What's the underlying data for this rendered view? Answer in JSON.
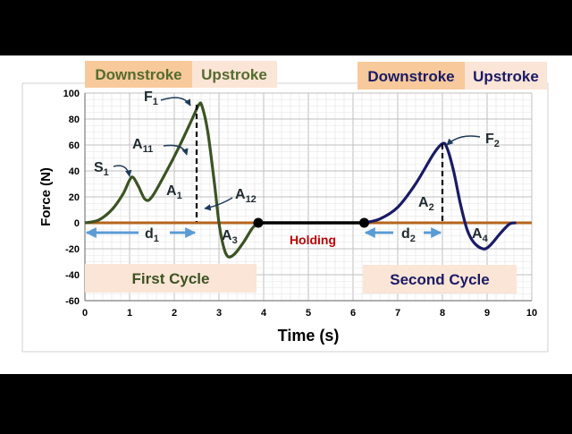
{
  "chart_data": {
    "type": "line",
    "xlabel": "Time (s)",
    "ylabel": "Force (N)",
    "xlim": [
      0,
      10
    ],
    "ylim": [
      -60,
      100
    ],
    "x_ticks": [
      "0",
      "1",
      "2",
      "3",
      "4",
      "5",
      "6",
      "7",
      "8",
      "9",
      "10"
    ],
    "y_ticks": [
      "100",
      "80",
      "60",
      "40",
      "20",
      "0",
      "-20",
      "-40",
      "-60"
    ],
    "grid": true,
    "series": [
      {
        "color": "#3B5323",
        "points": [
          [
            0,
            0
          ],
          [
            0.3,
            2
          ],
          [
            0.6,
            10
          ],
          [
            0.85,
            22
          ],
          [
            1.0,
            33
          ],
          [
            1.08,
            35
          ],
          [
            1.2,
            28
          ],
          [
            1.35,
            18
          ],
          [
            1.5,
            20
          ],
          [
            1.8,
            38
          ],
          [
            2.1,
            58
          ],
          [
            2.4,
            80
          ],
          [
            2.55,
            91
          ],
          [
            2.62,
            90
          ],
          [
            2.75,
            70
          ],
          [
            2.9,
            30
          ],
          [
            3.0,
            0
          ],
          [
            3.1,
            -18
          ],
          [
            3.2,
            -26
          ],
          [
            3.35,
            -24
          ],
          [
            3.55,
            -15
          ],
          [
            3.75,
            -4
          ],
          [
            3.88,
            0
          ]
        ]
      },
      {
        "color": "#1A1A66",
        "points": [
          [
            6.25,
            0
          ],
          [
            6.6,
            3
          ],
          [
            7.0,
            12
          ],
          [
            7.4,
            30
          ],
          [
            7.8,
            53
          ],
          [
            8.0,
            61
          ],
          [
            8.1,
            58
          ],
          [
            8.25,
            40
          ],
          [
            8.4,
            15
          ],
          [
            8.55,
            -5
          ],
          [
            8.7,
            -15
          ],
          [
            8.9,
            -20
          ],
          [
            9.05,
            -18
          ],
          [
            9.3,
            -8
          ],
          [
            9.5,
            -1
          ],
          [
            9.65,
            0
          ]
        ]
      }
    ],
    "holding_segment": {
      "x": [
        3.88,
        6.25
      ],
      "y": 0,
      "color": "#000000"
    },
    "zero_line_color": "#B5651D",
    "dashed_markers": [
      {
        "x": 2.55,
        "y": 91
      },
      {
        "x": 8.0,
        "y": 61
      }
    ],
    "headers": {
      "downstroke_1": "Downstroke",
      "upstroke_1": "Upstroke",
      "downstroke_2": "Downstroke",
      "upstroke_2": "Upstroke"
    },
    "cycle_labels": {
      "first": "First Cycle",
      "second": "Second Cycle",
      "holding": "Holding"
    },
    "annotations": [
      {
        "id": "S1",
        "base": "S",
        "sub": "1"
      },
      {
        "id": "F1",
        "base": "F",
        "sub": "1"
      },
      {
        "id": "A11",
        "base": "A",
        "sub": "11"
      },
      {
        "id": "A1",
        "base": "A",
        "sub": "1"
      },
      {
        "id": "A12",
        "base": "A",
        "sub": "12"
      },
      {
        "id": "A3",
        "base": "A",
        "sub": "3"
      },
      {
        "id": "d1",
        "base": "d",
        "sub": "1"
      },
      {
        "id": "F2",
        "base": "F",
        "sub": "2"
      },
      {
        "id": "A2",
        "base": "A",
        "sub": "2"
      },
      {
        "id": "d2",
        "base": "d",
        "sub": "2"
      },
      {
        "id": "A4",
        "base": "A",
        "sub": "4"
      }
    ],
    "colors": {
      "header_bg": "#F8C99A",
      "header_text_green": "#556B2F",
      "header_text_blue": "#1A1A66",
      "cycle_bg": "#FBE5D6",
      "holding_text": "#C00000",
      "arrow_blue": "#5B9BD5",
      "grid_major": "#BFBFBF",
      "grid_minor": "#E3E3E3"
    }
  }
}
